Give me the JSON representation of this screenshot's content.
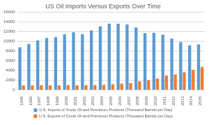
{
  "chart_data": {
    "type": "bar",
    "title": "US Oil Imports Versus Exports Over Time",
    "categories": [
      "1995",
      "1996",
      "1997",
      "1998",
      "1999",
      "2000",
      "2001",
      "2002",
      "2003",
      "2004",
      "2005",
      "2006",
      "2007",
      "2008",
      "2009",
      "2010",
      "2011",
      "2012",
      "2013",
      "2014",
      "2015"
    ],
    "series": [
      {
        "name": "U.S. Imports of Crude Oil and Petroleum Products (Thousand Barrels per Day)",
        "color": "#5b9bd5",
        "values": [
          8800,
          9500,
          10200,
          10700,
          10900,
          11500,
          11900,
          11500,
          12300,
          13100,
          13700,
          13700,
          13500,
          12900,
          11700,
          11800,
          11400,
          10600,
          9900,
          9200,
          9400
        ]
      },
      {
        "name": "U.S. Exports of Crude Oil and Petroleum Products (Thousand Barrels per Day)",
        "color": "#ed7d31",
        "values": [
          950,
          980,
          1000,
          950,
          940,
          1040,
          970,
          980,
          1030,
          1050,
          1170,
          1320,
          1430,
          1800,
          2020,
          2350,
          2990,
          3200,
          3620,
          4180,
          4740
        ]
      }
    ],
    "ylim": [
      0,
      16000
    ],
    "yticks": [
      0,
      2000,
      4000,
      6000,
      8000,
      10000,
      12000,
      14000,
      16000
    ],
    "grid": true,
    "legend": "bottom"
  }
}
